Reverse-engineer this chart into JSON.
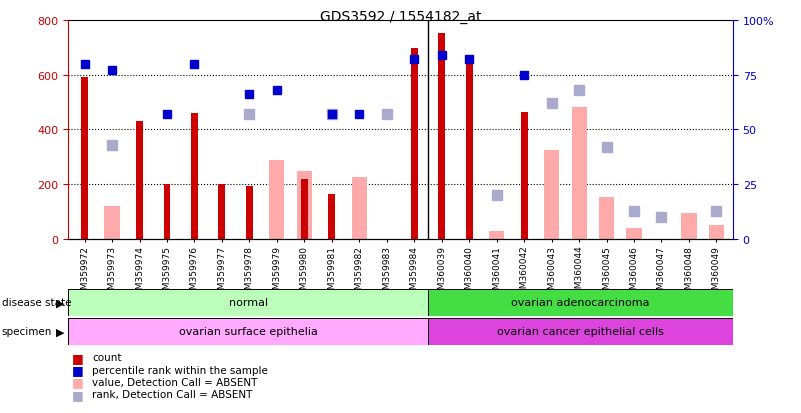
{
  "title": "GDS3592 / 1554182_at",
  "samples": [
    "GSM359972",
    "GSM359973",
    "GSM359974",
    "GSM359975",
    "GSM359976",
    "GSM359977",
    "GSM359978",
    "GSM359979",
    "GSM359980",
    "GSM359981",
    "GSM359982",
    "GSM359983",
    "GSM359984",
    "GSM360039",
    "GSM360040",
    "GSM360041",
    "GSM360042",
    "GSM360043",
    "GSM360044",
    "GSM360045",
    "GSM360046",
    "GSM360047",
    "GSM360048",
    "GSM360049"
  ],
  "count": [
    590,
    null,
    430,
    200,
    460,
    200,
    195,
    null,
    220,
    165,
    null,
    null,
    695,
    750,
    640,
    null,
    465,
    null,
    null,
    null,
    null,
    null,
    null,
    null
  ],
  "percentile_rank": [
    80,
    77,
    null,
    57,
    80,
    null,
    66,
    68,
    null,
    57,
    57,
    null,
    82,
    84,
    82,
    null,
    75,
    null,
    null,
    null,
    null,
    null,
    null,
    null
  ],
  "value_absent": [
    null,
    120,
    null,
    null,
    null,
    null,
    null,
    290,
    250,
    null,
    225,
    null,
    null,
    null,
    null,
    30,
    null,
    325,
    480,
    155,
    40,
    null,
    95,
    50
  ],
  "rank_absent": [
    null,
    43,
    null,
    null,
    null,
    null,
    57,
    null,
    null,
    57,
    null,
    57,
    null,
    null,
    null,
    20,
    null,
    62,
    68,
    42,
    13,
    10,
    null,
    13
  ],
  "ylim_left": [
    0,
    800
  ],
  "ylim_right": [
    0,
    100
  ],
  "left_ticks": [
    0,
    200,
    400,
    600,
    800
  ],
  "right_ticks": [
    0,
    25,
    50,
    75,
    100
  ],
  "right_tick_labels": [
    "0",
    "25",
    "50",
    "75",
    "100%"
  ],
  "group1_count": 13,
  "disease_normal": "normal",
  "disease_cancer": "ovarian adenocarcinoma",
  "specimen_normal": "ovarian surface epithelia",
  "specimen_cancer": "ovarian cancer epithelial cells",
  "color_count": "#cc0000",
  "color_rank": "#0000cc",
  "color_value_absent": "#ffaaaa",
  "color_rank_absent": "#aaaacc",
  "color_normal_disease": "#bbffbb",
  "color_cancer_disease": "#44dd44",
  "color_normal_specimen": "#ffaaff",
  "color_cancer_specimen": "#dd44dd",
  "xtick_bg": "#cccccc",
  "label_area_bg": "#cccccc"
}
